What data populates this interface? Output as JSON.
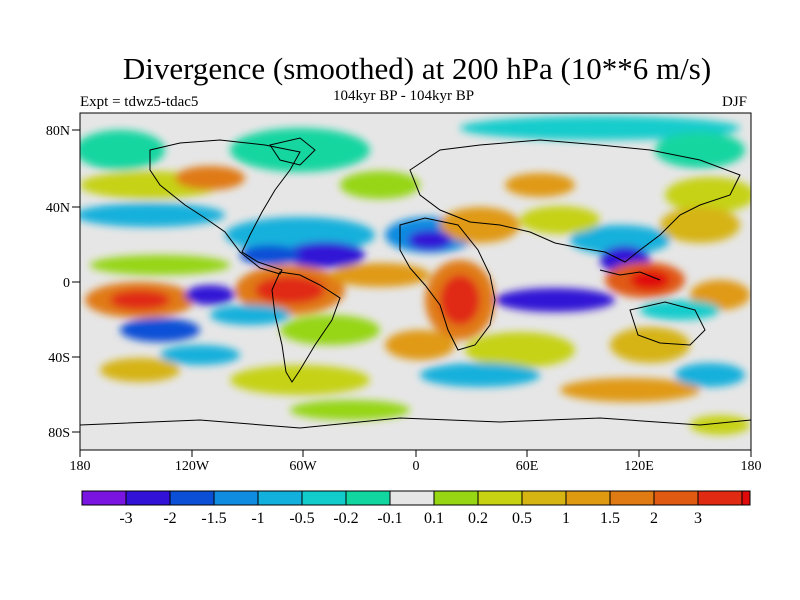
{
  "title": "Divergence (smoothed) at 200 hPa (10**6 m/s)",
  "subtitle": "104kyr BP - 104kyr BP",
  "experiment": "Expt = tdwz5-tdac5",
  "season": "DJF",
  "axes": {
    "x_ticks": [
      "180",
      "120W",
      "60W",
      "0",
      "60E",
      "120E",
      "180"
    ],
    "y_ticks": [
      "80N",
      "40N",
      "0",
      "40S",
      "80S"
    ]
  },
  "colorbar": {
    "colors": [
      "#7a14e0",
      "#3212d6",
      "#0b4fd6",
      "#0f8be0",
      "#12b0dc",
      "#12cccc",
      "#12d6a0",
      "#e6e6e6",
      "#96d612",
      "#c6d212",
      "#d6b412",
      "#e09a12",
      "#e07a12",
      "#e05a12",
      "#e02a12",
      "#e00a0a"
    ],
    "labels": [
      "-3",
      "-2",
      "-1.5",
      "-1",
      "-0.5",
      "-0.2",
      "-0.1",
      "0.1",
      "0.2",
      "0.5",
      "1",
      "1.5",
      "2",
      "3"
    ]
  }
}
